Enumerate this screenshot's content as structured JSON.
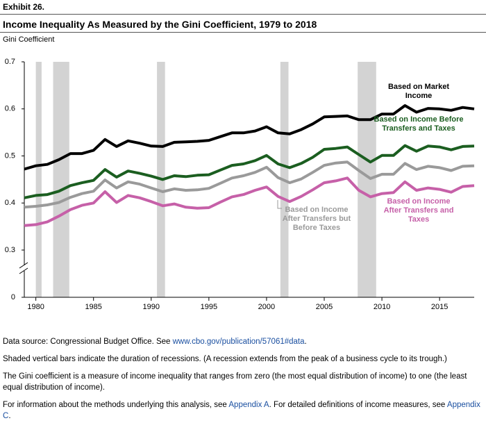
{
  "header": {
    "exhibit": "Exhibit 26.",
    "title": "Income Inequality As Measured by the Gini Coefficient, 1979 to 2018"
  },
  "chart_data": {
    "type": "line",
    "y_label": "Gini Coefficient",
    "x": [
      1979,
      1980,
      1981,
      1982,
      1983,
      1984,
      1985,
      1986,
      1987,
      1988,
      1989,
      1990,
      1991,
      1992,
      1993,
      1994,
      1995,
      1996,
      1997,
      1998,
      1999,
      2000,
      2001,
      2002,
      2003,
      2004,
      2005,
      2006,
      2007,
      2008,
      2009,
      2010,
      2011,
      2012,
      2013,
      2014,
      2015,
      2016,
      2017,
      2018
    ],
    "xlim": [
      1979,
      2018
    ],
    "xticks": [
      1980,
      1985,
      1990,
      1995,
      2000,
      2005,
      2010,
      2015
    ],
    "ylim": [
      0.3,
      0.7
    ],
    "yticks": [
      0.3,
      0.4,
      0.5,
      0.6,
      0.7
    ],
    "y_baseline_tick": 0,
    "axis_break": true,
    "grid": false,
    "recessions": [
      [
        1980.0,
        1980.5
      ],
      [
        1981.5,
        1982.9
      ],
      [
        1990.5,
        1991.2
      ],
      [
        2001.2,
        2001.9
      ],
      [
        2007.9,
        2009.5
      ]
    ],
    "recession_color": "#d3d3d3",
    "series": [
      {
        "name": "Based on Market Income",
        "color": "#000000",
        "values": [
          0.472,
          0.479,
          0.482,
          0.492,
          0.505,
          0.505,
          0.512,
          0.535,
          0.52,
          0.532,
          0.527,
          0.521,
          0.52,
          0.529,
          0.53,
          0.531,
          0.533,
          0.541,
          0.549,
          0.549,
          0.553,
          0.562,
          0.549,
          0.547,
          0.556,
          0.568,
          0.583,
          0.584,
          0.585,
          0.577,
          0.577,
          0.589,
          0.589,
          0.607,
          0.593,
          0.601,
          0.6,
          0.597,
          0.603,
          0.6
        ]
      },
      {
        "name": "Based on Income Before Transfers and Taxes",
        "color": "#1b5e20",
        "values": [
          0.411,
          0.416,
          0.418,
          0.425,
          0.437,
          0.443,
          0.448,
          0.471,
          0.455,
          0.468,
          0.463,
          0.457,
          0.45,
          0.458,
          0.456,
          0.459,
          0.46,
          0.47,
          0.48,
          0.483,
          0.49,
          0.501,
          0.483,
          0.475,
          0.484,
          0.497,
          0.514,
          0.516,
          0.519,
          0.503,
          0.487,
          0.501,
          0.501,
          0.522,
          0.51,
          0.521,
          0.519,
          0.513,
          0.52,
          0.521
        ]
      },
      {
        "name": "Based on Income After Transfers but Before Taxes",
        "color": "#9a9a9a",
        "values": [
          0.391,
          0.393,
          0.396,
          0.401,
          0.412,
          0.42,
          0.425,
          0.449,
          0.432,
          0.445,
          0.44,
          0.432,
          0.424,
          0.43,
          0.427,
          0.428,
          0.431,
          0.442,
          0.453,
          0.458,
          0.465,
          0.476,
          0.454,
          0.443,
          0.451,
          0.465,
          0.48,
          0.485,
          0.487,
          0.469,
          0.452,
          0.461,
          0.461,
          0.484,
          0.471,
          0.478,
          0.475,
          0.469,
          0.478,
          0.479
        ]
      },
      {
        "name": "Based on Income After Transfers and Taxes",
        "color": "#c660a8",
        "values": [
          0.352,
          0.354,
          0.36,
          0.372,
          0.386,
          0.395,
          0.4,
          0.424,
          0.401,
          0.416,
          0.411,
          0.403,
          0.394,
          0.398,
          0.391,
          0.389,
          0.39,
          0.402,
          0.413,
          0.418,
          0.427,
          0.434,
          0.414,
          0.403,
          0.414,
          0.428,
          0.443,
          0.447,
          0.453,
          0.427,
          0.413,
          0.42,
          0.422,
          0.445,
          0.427,
          0.432,
          0.429,
          0.423,
          0.435,
          0.437
        ]
      }
    ]
  },
  "notes": [
    [
      {
        "text": "Data source: Congressional Budget Office. See "
      },
      {
        "text": "www.cbo.gov/publication/57061#data",
        "link": true
      },
      {
        "text": "."
      }
    ],
    [
      {
        "text": "Shaded vertical bars indicate the duration of recessions. (A recession extends from the peak of a business cycle to its trough.)"
      }
    ],
    [
      {
        "text": "The Gini coefficient is a measure of income inequality that ranges from zero (the most equal distribution of income) to one (the least equal distribution of income)."
      }
    ],
    [
      {
        "text": "For information about the methods underlying this analysis, see "
      },
      {
        "text": "Appendix A",
        "link": true
      },
      {
        "text": ". For detailed definitions of income measures, see "
      },
      {
        "text": "Appendix C",
        "link": true
      },
      {
        "text": "."
      }
    ]
  ]
}
